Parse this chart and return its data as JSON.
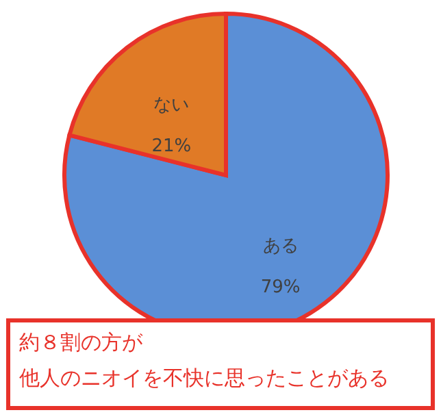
{
  "chart_data": {
    "type": "pie",
    "categories": [
      "ある",
      "ない"
    ],
    "values": [
      79,
      21
    ],
    "colors": [
      "#5b8fd6",
      "#e07a26"
    ],
    "value_labels": [
      "79%",
      "21%"
    ],
    "annotations": [
      "約８割の方が",
      "他人のニオイを不快に思ったことがある"
    ]
  }
}
